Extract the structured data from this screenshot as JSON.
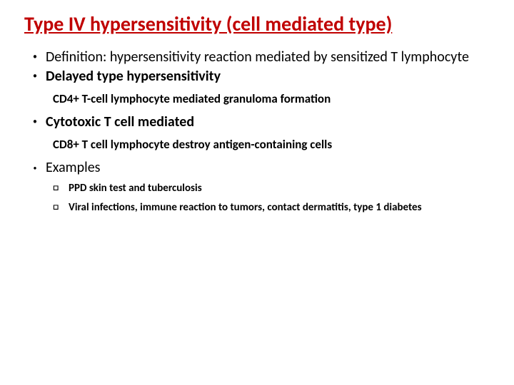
{
  "title_color": "#c00000",
  "title_fontsize": 28,
  "body_fontsize": 20,
  "sub_fontsize": 17,
  "examples_label_fontsize": 20,
  "example_item_fontsize": 15,
  "bullet_dot": "•",
  "square_glyph": "□",
  "title": "Type IV hypersensitivity (cell mediated type)",
  "bullets": [
    {
      "text": "Definition: hypersensitivity reaction mediated by sensitized T lymphocyte",
      "bold": false
    },
    {
      "text": "Delayed type hypersensitivity",
      "bold": true,
      "sub": "CD4+ T-cell lymphocyte mediated granuloma formation"
    },
    {
      "text": "Cytotoxic T cell mediated",
      "bold": true,
      "sub": "CD8+ T cell lymphocyte destroy antigen-containing cells"
    }
  ],
  "examples_label": "Examples",
  "examples": [
    "PPD skin test and tuberculosis",
    "Viral infections, immune reaction to tumors, contact dermatitis, type 1 diabetes"
  ],
  "decor": {
    "poly1_fill": "#d9d9d9",
    "poly2_fill": "#bfbfbf"
  }
}
